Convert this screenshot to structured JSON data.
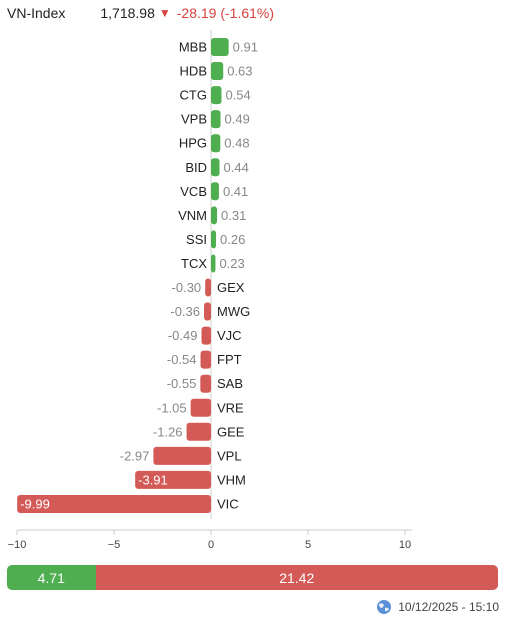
{
  "index": {
    "name": "VN-Index",
    "price": "1,718.98",
    "direction_icon": "down-triangle-icon",
    "change": "-28.19 (-1.61%)"
  },
  "colors": {
    "positive": "#4fae4f",
    "negative": "#d35a57",
    "down_text": "#d9423f"
  },
  "chart_data": {
    "type": "bar",
    "orientation": "horizontal",
    "categories": [
      "MBB",
      "HDB",
      "CTG",
      "VPB",
      "HPG",
      "BID",
      "VCB",
      "VNM",
      "SSI",
      "TCX",
      "GEX",
      "MWG",
      "VJC",
      "FPT",
      "SAB",
      "VRE",
      "GEE",
      "VPL",
      "VHM",
      "VIC"
    ],
    "values": [
      0.91,
      0.63,
      0.54,
      0.49,
      0.48,
      0.44,
      0.41,
      0.31,
      0.26,
      0.23,
      -0.3,
      -0.36,
      -0.49,
      -0.54,
      -0.55,
      -1.05,
      -1.26,
      -2.97,
      -3.91,
      -9.99
    ],
    "labels": [
      "0.91",
      "0.63",
      "0.54",
      "0.49",
      "0.48",
      "0.44",
      "0.41",
      "0.31",
      "0.26",
      "0.23",
      "-0.30",
      "-0.36",
      "-0.49",
      "-0.54",
      "-0.55",
      "-1.05",
      "-1.26",
      "-2.97",
      "-3.91",
      "-9.99"
    ],
    "xlim": [
      -10,
      10
    ],
    "xticks": [
      -10,
      -5,
      0,
      5,
      10
    ],
    "xtick_labels": [
      "−10",
      "−5",
      "0",
      "5",
      "10"
    ],
    "grid": false,
    "legend": "none"
  },
  "summary": {
    "positive": "4.71",
    "negative": "21.42",
    "positive_value": 4.71,
    "negative_value": 21.42
  },
  "timestamp": {
    "icon": "globe-icon",
    "text": "10/12/2025 - 15:10"
  }
}
